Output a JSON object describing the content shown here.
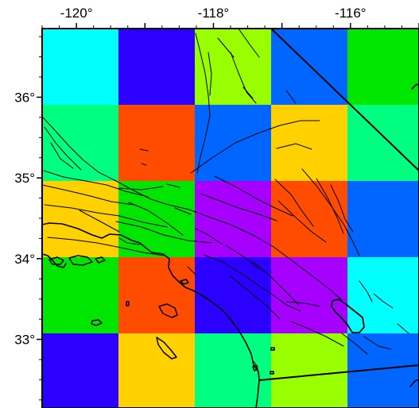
{
  "map": {
    "x_axis": {
      "ticks": [
        {
          "lon": -120,
          "label": "-120°"
        },
        {
          "lon": -118,
          "label": "-118°"
        },
        {
          "lon": -116,
          "label": "-116°"
        }
      ],
      "range": [
        -120.5,
        -115.0
      ]
    },
    "y_axis": {
      "ticks": [
        {
          "lat": 36,
          "label": "36°"
        },
        {
          "lat": 35,
          "label": "35°"
        },
        {
          "lat": 34,
          "label": "34°"
        },
        {
          "lat": 33,
          "label": "33°"
        }
      ],
      "range": [
        32.15,
        36.85
      ]
    },
    "grid": {
      "rows": [
        [
          "#00ffff",
          "#2c00ff",
          "#99ff00",
          "#0066ff",
          "#00e600"
        ],
        [
          "#00ff80",
          "#ff4c00",
          "#0066ff",
          "#ffd100",
          "#00ff80"
        ],
        [
          "#ffd100",
          "#00e600",
          "#a600ff",
          "#ff4c00",
          "#0066ff"
        ],
        [
          "#00e600",
          "#ff4c00",
          "#2c00ff",
          "#a600ff",
          "#00ffff"
        ],
        [
          "#2c00ff",
          "#ffd100",
          "#00ff80",
          "#99ff00",
          "#0066ff"
        ]
      ]
    },
    "line_color": "#000000",
    "frame_style": "black frame with minor ticks"
  }
}
